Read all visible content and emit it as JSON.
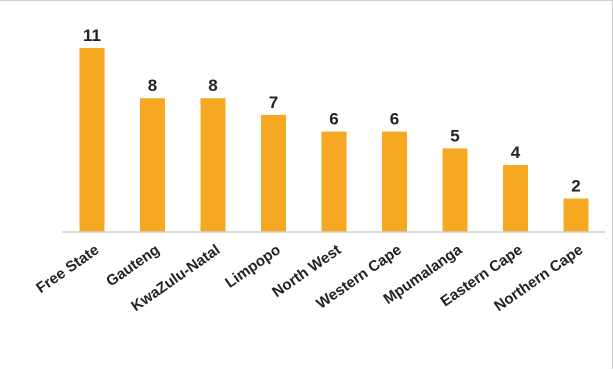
{
  "chart_data": {
    "type": "bar",
    "categories": [
      "Free State",
      "Gauteng",
      "KwaZulu-Natal",
      "Limpopo",
      "North West",
      "Western Cape",
      "Mpumalanga",
      "Eastern Cape",
      "Northern Cape"
    ],
    "values": [
      11,
      8,
      8,
      7,
      6,
      6,
      5,
      4,
      2
    ],
    "ylim": [
      0,
      11
    ],
    "grid": false,
    "data_labels": true,
    "colors": {
      "bar": "#F7A823",
      "axis": "#d0d0d0",
      "text": "#222222"
    }
  }
}
